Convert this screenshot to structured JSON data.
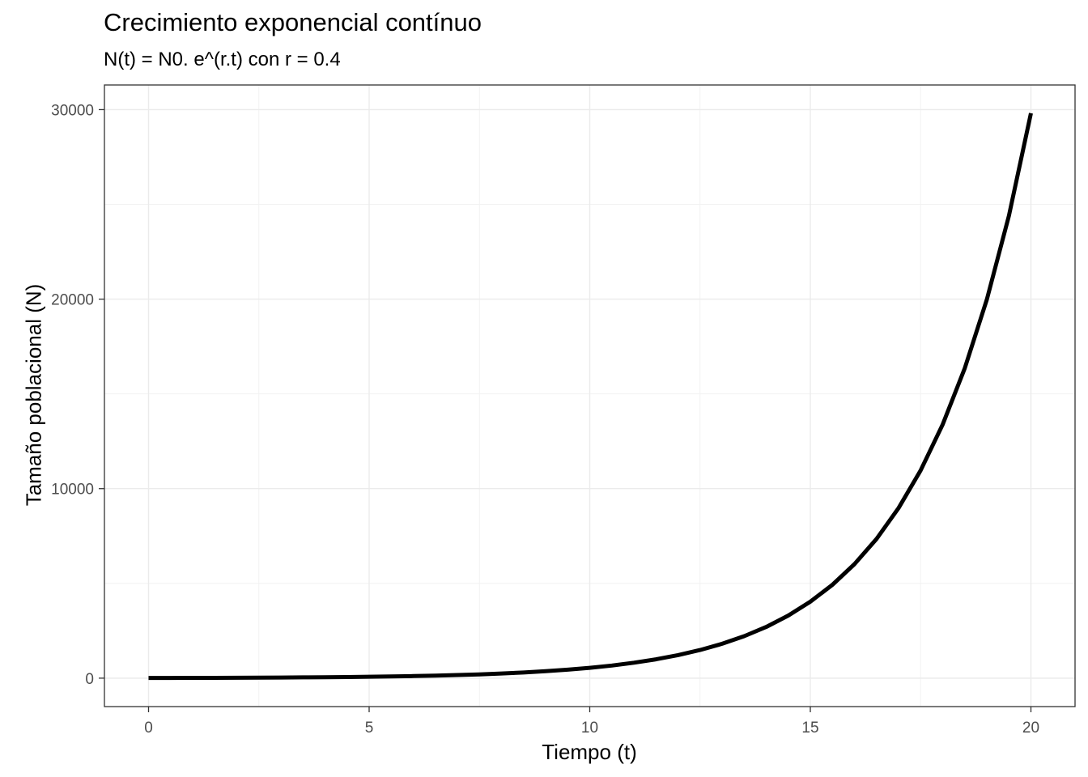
{
  "chart_data": {
    "type": "line",
    "title": "Crecimiento exponencial contínuo",
    "subtitle": "N(t) = N0. e^(r.t)  con r = 0.4",
    "xlabel": "Tiempo (t)",
    "ylabel": "Tamaño poblacional (N)",
    "xlim": [
      -1,
      21
    ],
    "ylim": [
      -1500,
      31300
    ],
    "xticks": [
      0,
      5,
      10,
      15,
      20
    ],
    "xtick_labels": [
      "0",
      "5",
      "10",
      "15",
      "20"
    ],
    "yticks": [
      0,
      10000,
      20000,
      30000
    ],
    "ytick_labels": [
      "0",
      "10000",
      "20000",
      "30000"
    ],
    "grid": true,
    "series": [
      {
        "x": [
          0,
          0.5,
          1,
          1.5,
          2,
          2.5,
          3,
          3.5,
          4,
          4.5,
          5,
          5.5,
          6,
          6.5,
          7,
          7.5,
          8,
          8.5,
          9,
          9.5,
          10,
          10.5,
          11,
          11.5,
          12,
          12.5,
          13,
          13.5,
          14,
          14.5,
          15,
          15.5,
          16,
          16.5,
          17,
          17.5,
          18,
          18.5,
          19,
          19.5,
          20
        ],
        "y": [
          10,
          12,
          15,
          18,
          22,
          27,
          33,
          41,
          50,
          60,
          74,
          90,
          110,
          135,
          164,
          201,
          245,
          300,
          366,
          447,
          546,
          667,
          815,
          995,
          1215,
          1484,
          1813,
          2214,
          2704,
          3303,
          4034,
          4927,
          6018,
          7350,
          8977,
          10966,
          13390,
          16356,
          19975,
          24398,
          29810
        ],
        "color": "#000000"
      }
    ]
  }
}
